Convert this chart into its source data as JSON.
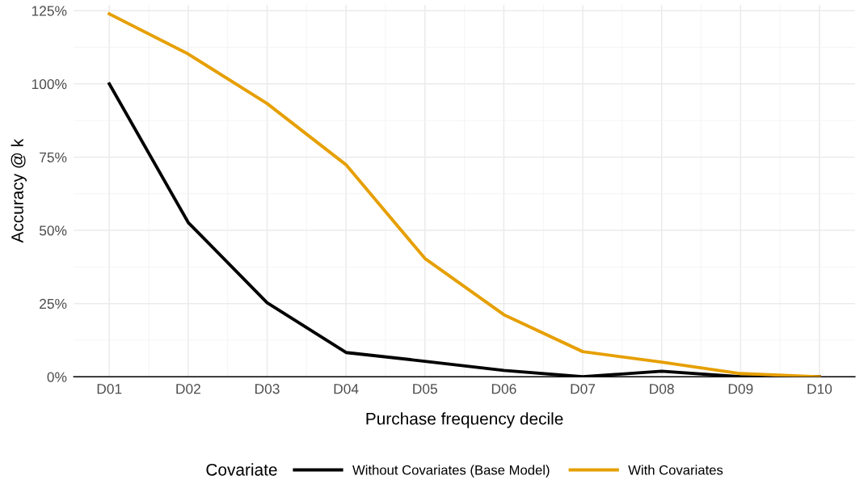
{
  "chart_data": {
    "type": "line",
    "xlabel": "Purchase frequency decile",
    "ylabel": "Accuracy @ k",
    "legend_title": "Covariate",
    "categories": [
      "D01",
      "D02",
      "D03",
      "D04",
      "D05",
      "D06",
      "D07",
      "D08",
      "D09",
      "D10"
    ],
    "series": [
      {
        "name": "Without Covariates (Base Model)",
        "color": "#000000",
        "values": [
          100,
          52.7,
          25.3,
          8.3,
          5.3,
          2.2,
          0,
          1.9,
          0,
          0
        ]
      },
      {
        "name": "With Covariates",
        "color": "#e69f00",
        "values": [
          123.9,
          110.2,
          93.3,
          72.4,
          40.4,
          21.2,
          8.6,
          5.0,
          1.1,
          0
        ]
      }
    ],
    "ylim": [
      0,
      127
    ],
    "yticks": [
      {
        "value": 0,
        "label": "0%"
      },
      {
        "value": 25,
        "label": "25%"
      },
      {
        "value": 50,
        "label": "50%"
      },
      {
        "value": 75,
        "label": "75%"
      },
      {
        "value": 100,
        "label": "100%"
      },
      {
        "value": 125,
        "label": "125%"
      }
    ],
    "grid": true,
    "legend": "bottom",
    "marker": "none",
    "line_style": "solid"
  }
}
